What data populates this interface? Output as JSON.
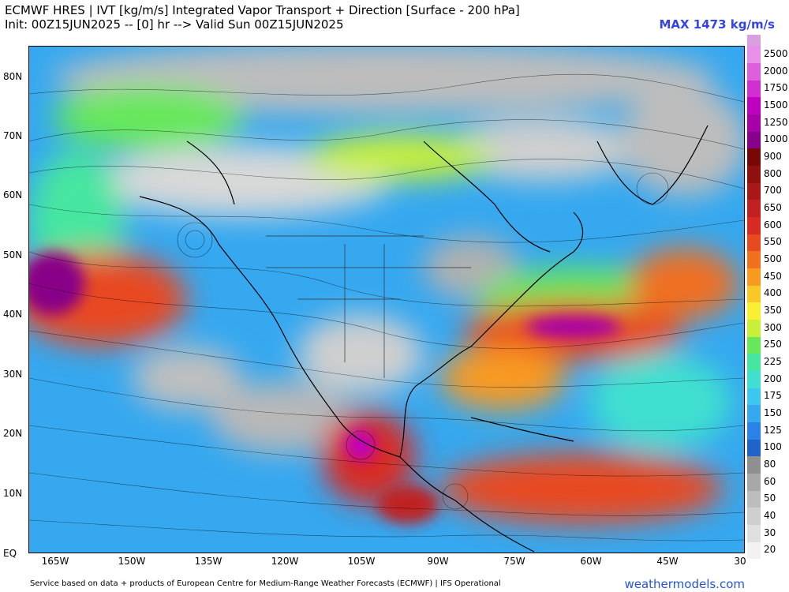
{
  "header": {
    "title_line1": "ECMWF HRES | IVT [kg/m/s] Integrated Vapor Transport + Direction [Surface - 200 hPa]",
    "title_line2": "Init: 00Z15JUN2025 -- [0] hr --> Valid Sun 00Z15JUN2025",
    "max_label": "MAX 1473 kg/m/s",
    "max_color": "#3344ee"
  },
  "map": {
    "lat_labels": [
      "80N",
      "70N",
      "60N",
      "50N",
      "40N",
      "30N",
      "20N",
      "10N",
      "EQ"
    ],
    "lon_labels": [
      "165W",
      "150W",
      "135W",
      "120W",
      "105W",
      "90W",
      "75W",
      "60W",
      "45W",
      "30"
    ]
  },
  "colorbar": {
    "levels": [
      {
        "label": "20",
        "color": "#f2f2f2"
      },
      {
        "label": "30",
        "color": "#e0e0e0"
      },
      {
        "label": "40",
        "color": "#cfcfcf"
      },
      {
        "label": "50",
        "color": "#bdbdbd"
      },
      {
        "label": "60",
        "color": "#a8a8a8"
      },
      {
        "label": "80",
        "color": "#8f8f8f"
      },
      {
        "label": "100",
        "color": "#1f63c9"
      },
      {
        "label": "125",
        "color": "#2a82e8"
      },
      {
        "label": "150",
        "color": "#35a8f0"
      },
      {
        "label": "175",
        "color": "#3cc7f0"
      },
      {
        "label": "200",
        "color": "#40e0d0"
      },
      {
        "label": "225",
        "color": "#47e6a0"
      },
      {
        "label": "250",
        "color": "#66e85a"
      },
      {
        "label": "300",
        "color": "#c8f03a"
      },
      {
        "label": "350",
        "color": "#f8f030"
      },
      {
        "label": "400",
        "color": "#f8c828"
      },
      {
        "label": "450",
        "color": "#f89a20"
      },
      {
        "label": "500",
        "color": "#f07020"
      },
      {
        "label": "550",
        "color": "#e84a20"
      },
      {
        "label": "600",
        "color": "#d82a20"
      },
      {
        "label": "650",
        "color": "#c02020"
      },
      {
        "label": "700",
        "color": "#a81818"
      },
      {
        "label": "800",
        "color": "#901010"
      },
      {
        "label": "900",
        "color": "#780808"
      },
      {
        "label": "1000",
        "color": "#880088"
      },
      {
        "label": "1250",
        "color": "#a800a8"
      },
      {
        "label": "1500",
        "color": "#c000c0"
      },
      {
        "label": "1750",
        "color": "#d030d0"
      },
      {
        "label": "2000",
        "color": "#dc60dc"
      },
      {
        "label": "2500",
        "color": "#e890e8"
      }
    ],
    "top_cap_color": "#d9a0e0"
  },
  "footer": {
    "attribution": "Service based on data + products of European Centre for Medium-Range Weather Forecasts (ECMWF) | IFS Operational",
    "brand": "weathermodels.com",
    "brand_color": "#2255dd"
  }
}
